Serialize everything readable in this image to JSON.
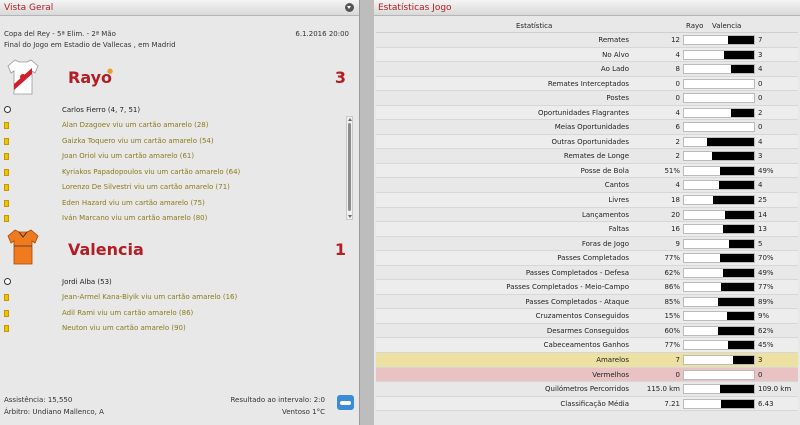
{
  "left_panel": {
    "title": "Vista Geral",
    "competition": "Copa del Rey - 5ª Elim. - 2ª Mão",
    "date": "6.1.2016 20:00",
    "venue": "Final do Jogo em Estadio de Vallecas , em Madrid",
    "home": {
      "name": "Rayo",
      "score": "3",
      "scorers": "Carlos Fierro (4, 7, 51)",
      "events": [
        "Alan Dzagoev viu um cartão amarelo (28)",
        "Gaizka Toquero viu um cartão amarelo (54)",
        "Joan Oriol viu um cartão amarelo (61)",
        "Kyriakos Papadopoulos viu um cartão amarelo (64)",
        "Lorenzo De Silvestri viu um cartão amarelo (71)",
        "Eden Hazard viu um cartão amarelo (75)",
        "Iván Marcano viu um cartão amarelo (80)"
      ]
    },
    "away": {
      "name": "Valencia",
      "score": "1",
      "scorers": "Jordi Alba (53)",
      "events": [
        "Jean-Armel Kana-Biyik viu um cartão amarelo (16)",
        "Adil Rami viu um cartão amarelo (86)",
        "Neuton viu um cartão amarelo (90)"
      ]
    },
    "footer": {
      "attendance": "Assistência: 15,550",
      "referee": "Árbitro: Undiano Mallenco, A",
      "halftime": "Resultado ao intervalo: 2:0",
      "weather": "Ventoso 1°C"
    },
    "colors": {
      "accent": "#b21e24",
      "home_shirt": "#ffffff",
      "away_shirt": "#f07a1e"
    }
  },
  "right_panel": {
    "title": "Estatísticas Jogo",
    "columns": {
      "stat": "Estatística",
      "home": "Rayo",
      "away": "Valencia"
    },
    "rows": [
      {
        "label": "Remates",
        "home": "12",
        "away": "7",
        "away_share": 0.37
      },
      {
        "label": "No Alvo",
        "home": "4",
        "away": "3",
        "away_share": 0.43
      },
      {
        "label": "Ao Lado",
        "home": "8",
        "away": "4",
        "away_share": 0.33
      },
      {
        "label": "Remates Interceptados",
        "home": "0",
        "away": "0",
        "away_share": 0
      },
      {
        "label": "Postes",
        "home": "0",
        "away": "0",
        "away_share": 0
      },
      {
        "label": "Oportunidades Flagrantes",
        "home": "4",
        "away": "2",
        "away_share": 0.33
      },
      {
        "label": "Meias Oportunidades",
        "home": "6",
        "away": "0",
        "away_share": 0
      },
      {
        "label": "Outras Oportunidades",
        "home": "2",
        "away": "4",
        "away_share": 0.67
      },
      {
        "label": "Remates de Longe",
        "home": "2",
        "away": "3",
        "away_share": 0.6
      },
      {
        "label": "Posse de Bola",
        "home": "51%",
        "away": "49%",
        "away_share": 0.49
      },
      {
        "label": "Cantos",
        "home": "4",
        "away": "4",
        "away_share": 0.5
      },
      {
        "label": "Livres",
        "home": "18",
        "away": "25",
        "away_share": 0.58
      },
      {
        "label": "Lançamentos",
        "home": "20",
        "away": "14",
        "away_share": 0.41
      },
      {
        "label": "Faltas",
        "home": "16",
        "away": "13",
        "away_share": 0.45
      },
      {
        "label": "Foras de Jogo",
        "home": "9",
        "away": "5",
        "away_share": 0.36
      },
      {
        "label": "Passes Completados",
        "home": "77%",
        "away": "70%",
        "away_share": 0.48
      },
      {
        "label": "Passes Completados - Defesa",
        "home": "62%",
        "away": "49%",
        "away_share": 0.44
      },
      {
        "label": "Passes Completados - Meio-Campo",
        "home": "86%",
        "away": "77%",
        "away_share": 0.47
      },
      {
        "label": "Passes Completados - Ataque",
        "home": "85%",
        "away": "89%",
        "away_share": 0.51
      },
      {
        "label": "Cruzamentos Conseguidos",
        "home": "15%",
        "away": "9%",
        "away_share": 0.38
      },
      {
        "label": "Desarmes Conseguidos",
        "home": "60%",
        "away": "62%",
        "away_share": 0.51
      },
      {
        "label": "Cabeceamentos Ganhos",
        "home": "77%",
        "away": "45%",
        "away_share": 0.37
      },
      {
        "label": "Amarelos",
        "home": "7",
        "away": "3",
        "away_share": 0.3,
        "highlight": "yellow"
      },
      {
        "label": "Vermelhos",
        "home": "0",
        "away": "0",
        "away_share": 0,
        "highlight": "red"
      },
      {
        "label": "Quilómetros Percorridos",
        "home": "115.0 km",
        "away": "109.0 km",
        "away_share": 0.49
      },
      {
        "label": "Classificação Média",
        "home": "7.21",
        "away": "6.43",
        "away_share": 0.47
      }
    ]
  }
}
